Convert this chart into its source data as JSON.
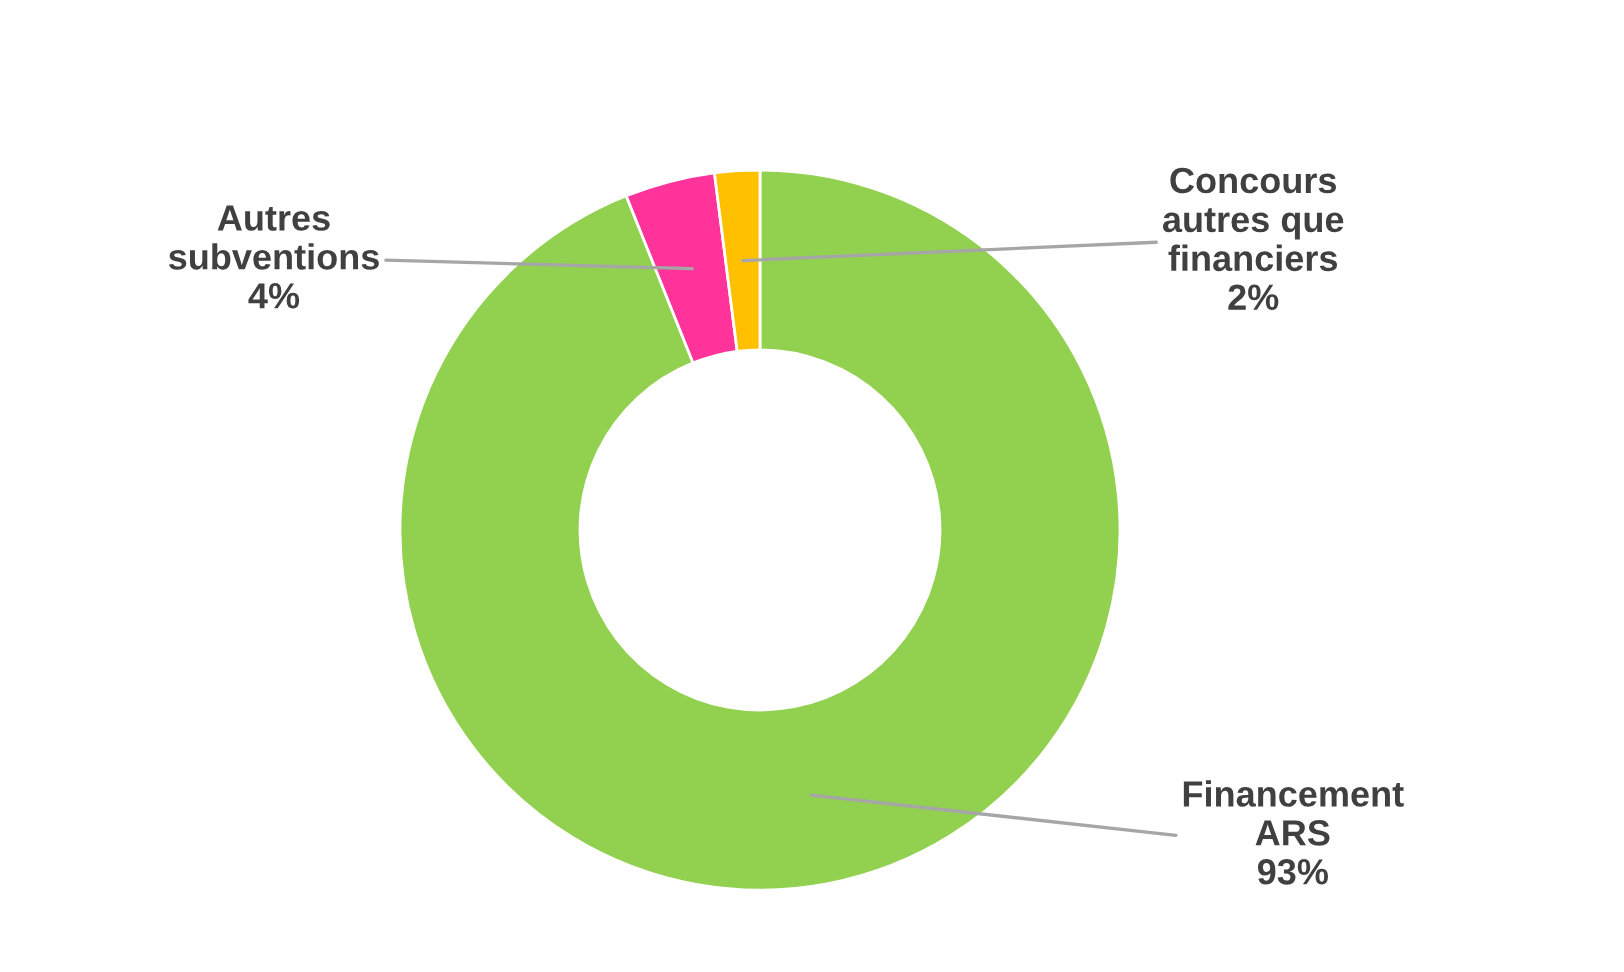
{
  "chart_data": {
    "type": "donut",
    "categories": [
      "Financement\nARS",
      "Autres\nsubventions",
      "Concours\nautres que\nfinanciers"
    ],
    "values": [
      93,
      4,
      2
    ],
    "value_labels": [
      "93%",
      "4%",
      "2%"
    ],
    "colors": [
      "#92d050",
      "#ff3399",
      "#ffc000"
    ],
    "legend": false
  }
}
